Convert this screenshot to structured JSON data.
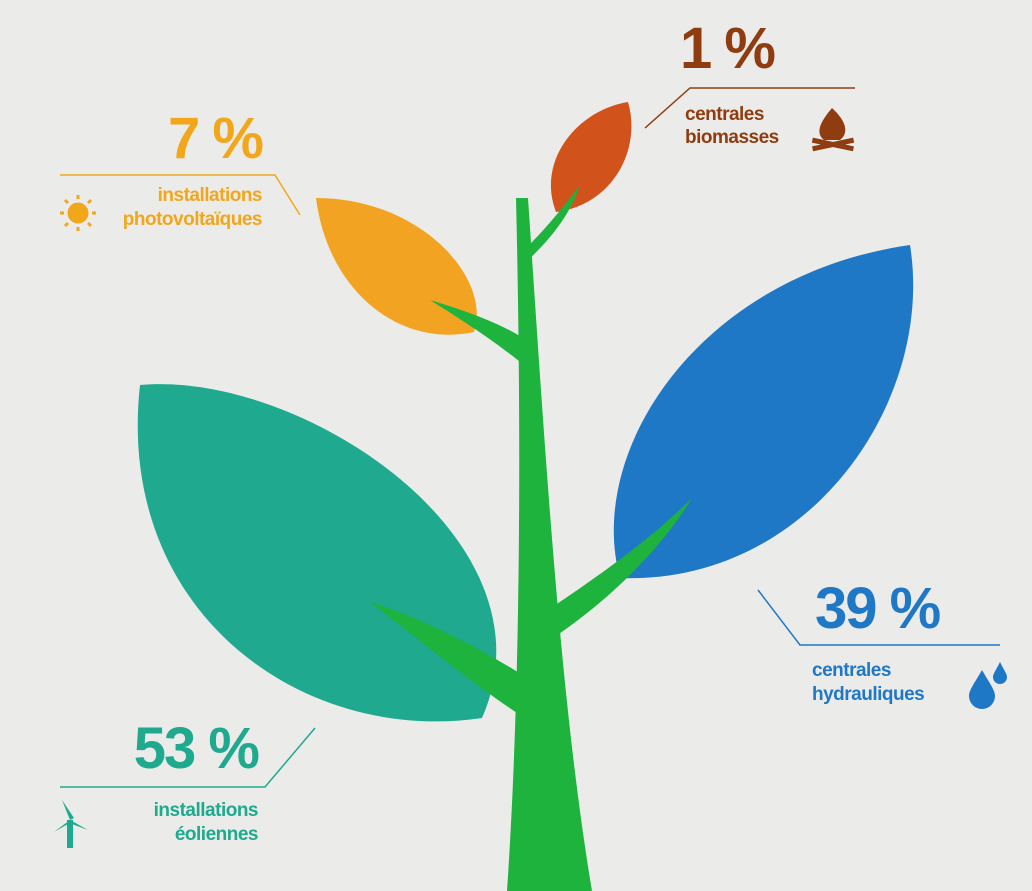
{
  "items": [
    {
      "percent": "1 %",
      "label_lines": [
        "centrales",
        "biomasses"
      ]
    },
    {
      "percent": "7 %",
      "label_lines": [
        "installations",
        "photovoltaïques"
      ]
    },
    {
      "percent": "39 %",
      "label_lines": [
        "centrales",
        "hydrauliques"
      ]
    },
    {
      "percent": "53 %",
      "label_lines": [
        "installations",
        "éoliennes"
      ]
    }
  ]
}
